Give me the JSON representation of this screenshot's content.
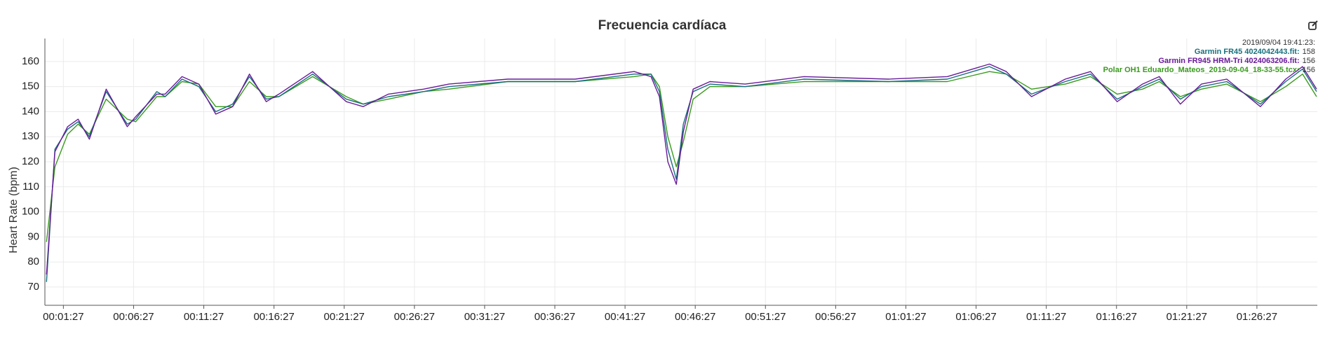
{
  "chart_data": {
    "type": "line",
    "title": "Frecuencia cardíaca",
    "y_label": "Heart Rate (bpm)",
    "hover_time": "2019/09/04 19:41:23:",
    "x": [
      15,
      51,
      105,
      150,
      198,
      270,
      360,
      396,
      486,
      522,
      594,
      666,
      738,
      810,
      882,
      954,
      1008,
      1152,
      1296,
      1368,
      1476,
      1626,
      1734,
      1986,
      2274,
      2526,
      2598,
      2634,
      2670,
      2706,
      2736,
      2778,
      2850,
      3000,
      3252,
      3612,
      3864,
      4044,
      4116,
      4224,
      4368,
      4476,
      4590,
      4698,
      4770,
      4860,
      4950,
      5058,
      5202,
      5310,
      5382,
      5442
    ],
    "series": [
      {
        "name": "Garmin FR45 4024042443.fit:",
        "color": "#17707e",
        "hover_value": 158,
        "values": [
          72,
          125,
          133,
          136,
          130,
          148,
          135,
          137,
          148,
          146,
          153,
          150,
          140,
          143,
          154,
          145,
          146,
          155,
          145,
          143,
          146,
          148,
          150,
          152,
          152,
          155,
          155,
          148,
          125,
          113,
          135,
          148,
          151,
          150,
          153,
          152,
          153,
          158,
          155,
          147,
          152,
          155,
          145,
          150,
          153,
          145,
          150,
          152,
          143,
          152,
          157,
          148
        ]
      },
      {
        "name": "Garmin FR945 HRM-Tri 4024063206.fit:",
        "color": "#6a1b9a",
        "hover_value": 156,
        "values": [
          75,
          124,
          134,
          137,
          129,
          149,
          134,
          138,
          147,
          147,
          154,
          151,
          139,
          142,
          155,
          144,
          147,
          156,
          144,
          142,
          147,
          149,
          151,
          153,
          153,
          156,
          154,
          146,
          120,
          111,
          132,
          149,
          152,
          151,
          154,
          153,
          154,
          159,
          156,
          146,
          153,
          156,
          144,
          151,
          154,
          143,
          151,
          153,
          142,
          153,
          158,
          149
        ]
      },
      {
        "name": "Polar OH1 Eduardo_Mateos_2019-09-04_18-33-55.tcx:",
        "color": "#3a9a1e",
        "hover_value": 156,
        "values": [
          88,
          118,
          131,
          135,
          131,
          145,
          137,
          136,
          146,
          146,
          152,
          151,
          142,
          142,
          152,
          146,
          146,
          154,
          146,
          143,
          145,
          148,
          149,
          152,
          152,
          154,
          155,
          150,
          130,
          118,
          128,
          145,
          150,
          150,
          152,
          152,
          152,
          156,
          155,
          149,
          151,
          154,
          147,
          149,
          152,
          146,
          149,
          151,
          144,
          150,
          155,
          146
        ]
      }
    ],
    "xlim": [
      8,
      5445
    ],
    "xticks": [
      {
        "value": 87,
        "label": "00:01:27"
      },
      {
        "value": 387,
        "label": "00:06:27"
      },
      {
        "value": 687,
        "label": "00:11:27"
      },
      {
        "value": 987,
        "label": "00:16:27"
      },
      {
        "value": 1287,
        "label": "00:21:27"
      },
      {
        "value": 1587,
        "label": "00:26:27"
      },
      {
        "value": 1887,
        "label": "00:31:27"
      },
      {
        "value": 2187,
        "label": "00:36:27"
      },
      {
        "value": 2487,
        "label": "00:41:27"
      },
      {
        "value": 2787,
        "label": "00:46:27"
      },
      {
        "value": 3087,
        "label": "00:51:27"
      },
      {
        "value": 3387,
        "label": "00:56:27"
      },
      {
        "value": 3687,
        "label": "01:01:27"
      },
      {
        "value": 3987,
        "label": "01:06:27"
      },
      {
        "value": 4287,
        "label": "01:11:27"
      },
      {
        "value": 4587,
        "label": "01:16:27"
      },
      {
        "value": 4887,
        "label": "01:21:27"
      },
      {
        "value": 5187,
        "label": "01:26:27"
      }
    ],
    "ylim": [
      62.7,
      169.2
    ],
    "yticks": [
      70,
      80,
      90,
      100,
      110,
      120,
      130,
      140,
      150,
      160
    ],
    "grid": true
  }
}
